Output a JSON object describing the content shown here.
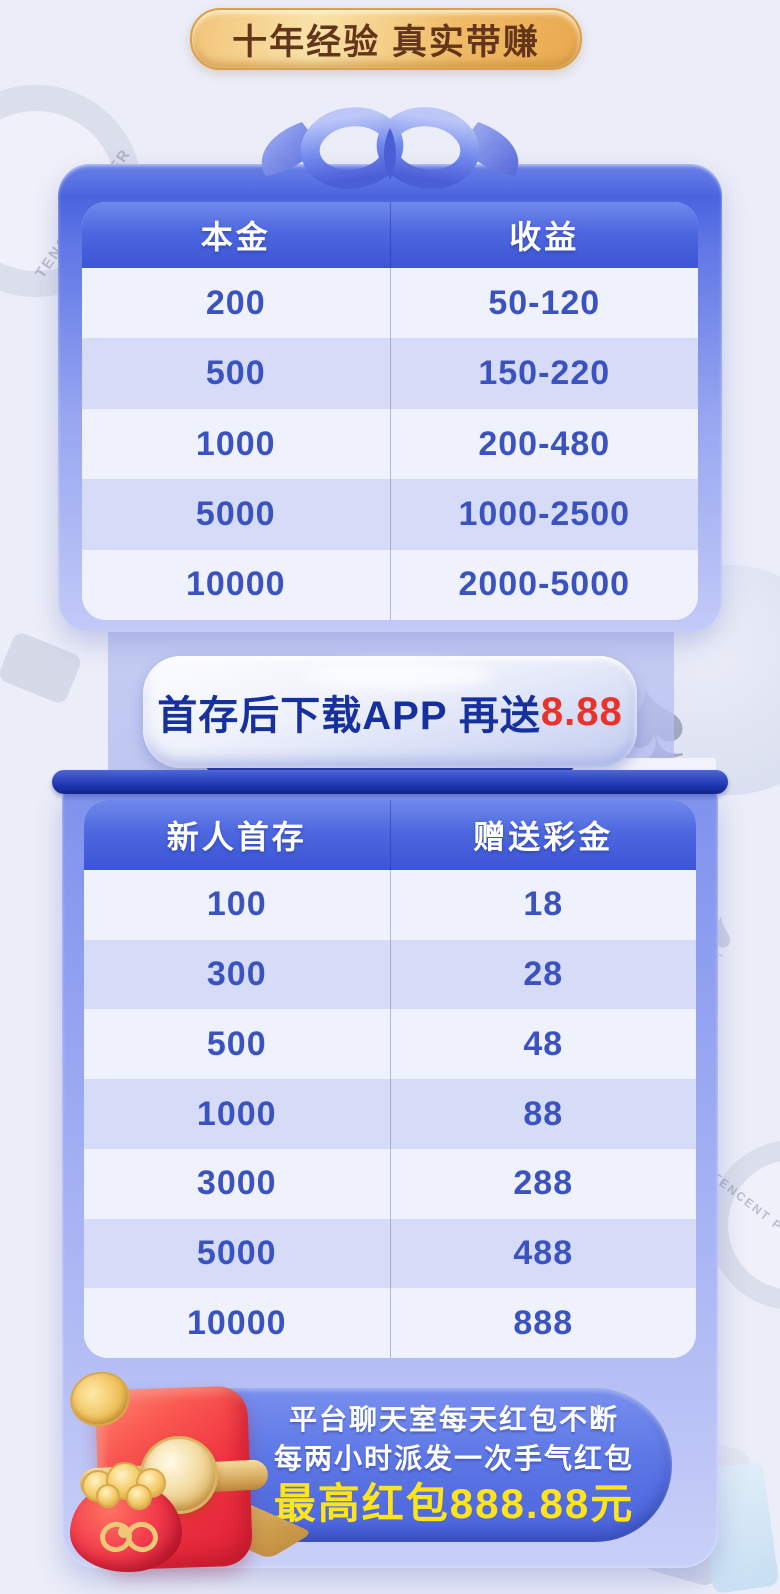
{
  "badge": {
    "label": "十年经验 真实带赚"
  },
  "deposit_table": {
    "headers": [
      "本金",
      "收益"
    ],
    "rows": [
      [
        "200",
        "50-120"
      ],
      [
        "500",
        "150-220"
      ],
      [
        "1000",
        "200-480"
      ],
      [
        "5000",
        "1000-2500"
      ],
      [
        "10000",
        "2000-5000"
      ]
    ]
  },
  "app_banner": {
    "text": "首存后下载APP 再送",
    "bonus": "8.88"
  },
  "first_deposit_table": {
    "headers": [
      "新人首存",
      "赠送彩金"
    ],
    "rows": [
      [
        "100",
        "18"
      ],
      [
        "300",
        "28"
      ],
      [
        "500",
        "48"
      ],
      [
        "1000",
        "88"
      ],
      [
        "3000",
        "288"
      ],
      [
        "5000",
        "488"
      ],
      [
        "10000",
        "888"
      ]
    ]
  },
  "red_packet_promo": {
    "line1": "平台聊天室每天红包不断",
    "line2": "每两小时派发一次手气红包",
    "highlight": "最高红包888.88元"
  },
  "background": {
    "watermark": "TENCENT POKER"
  },
  "icons": {
    "bow": "ribbon-bow-icon",
    "red_packet": "red-envelope-icon",
    "spade": "spade-suit-icon",
    "chip": "poker-chip-watermark"
  },
  "colors": {
    "accent_blue": "#4a64de",
    "table_text": "#3a53c0",
    "row_light": "#eff2fc",
    "row_alt": "#d6dcf8",
    "banner_text_navy": "#16309e",
    "banner_bonus_red": "#e8322a",
    "promo_highlight_yellow": "#ffe419",
    "badge_gold": "#efbb67",
    "badge_text_brown": "#63351a",
    "page_background": "#ebedf8"
  }
}
